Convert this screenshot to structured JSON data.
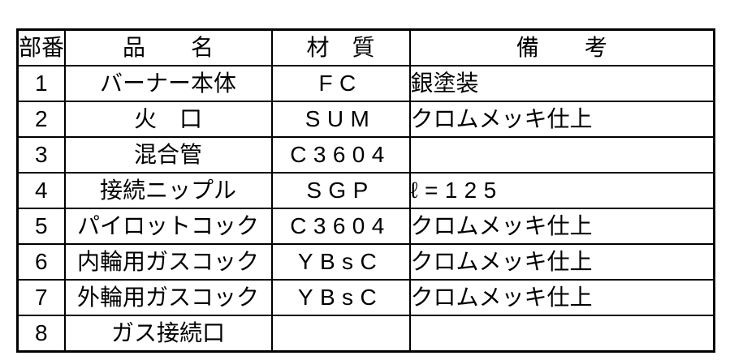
{
  "table": {
    "title": "parts-list",
    "columns": [
      {
        "key": "no",
        "label": "部番"
      },
      {
        "key": "name",
        "label": "品　　名"
      },
      {
        "key": "material",
        "label": "材　質"
      },
      {
        "key": "remarks",
        "label": "備　　考"
      }
    ],
    "rows": [
      {
        "no": "1",
        "name": "バーナー本体",
        "material": "FC",
        "remarks": "銀塗装"
      },
      {
        "no": "2",
        "name": "火　口",
        "material": "SUM",
        "remarks": "クロムメッキ仕上"
      },
      {
        "no": "3",
        "name": "混合管",
        "material": "C3604",
        "remarks": ""
      },
      {
        "no": "4",
        "name": "接続ニップル",
        "material": "SGP",
        "remarks": "ℓ=125"
      },
      {
        "no": "5",
        "name": "パイロットコック",
        "material": "C3604",
        "remarks": "クロムメッキ仕上"
      },
      {
        "no": "6",
        "name": "内輪用ガスコック",
        "material": "YBsC",
        "remarks": "クロムメッキ仕上"
      },
      {
        "no": "7",
        "name": "外輪用ガスコック",
        "material": "YBsC",
        "remarks": "クロムメッキ仕上"
      },
      {
        "no": "8",
        "name": "ガス接続口",
        "material": "",
        "remarks": ""
      }
    ],
    "colors": {
      "border": "#000000",
      "text": "#000000",
      "background": "#ffffff"
    }
  }
}
